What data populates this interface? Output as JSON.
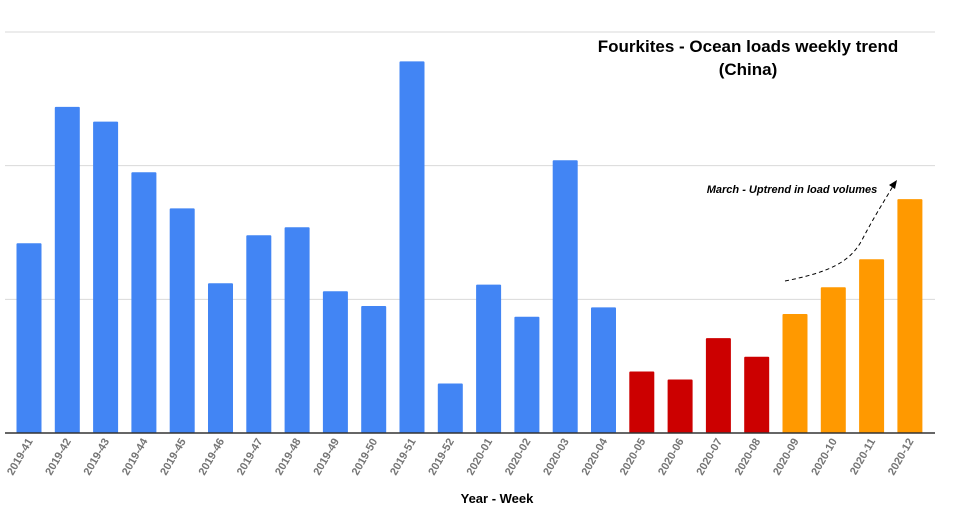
{
  "chart_data": {
    "type": "bar",
    "title": "Fourkites - Ocean loads weekly trend",
    "subtitle": "(China)",
    "xlabel": "Year - Week",
    "ylabel": "",
    "ylim": [
      0,
      3000
    ],
    "grid": true,
    "y_tick_labels_visible": false,
    "categories": [
      "2019-41",
      "2019-42",
      "2019-43",
      "2019-44",
      "2019-45",
      "2019-46",
      "2019-47",
      "2019-48",
      "2019-49",
      "2019-50",
      "2019-51",
      "2019-52",
      "2020-01",
      "2020-02",
      "2020-03",
      "2020-04",
      "2020-05",
      "2020-06",
      "2020-07",
      "2020-08",
      "2020-09",
      "2020-10",
      "2020-11",
      "2020-12"
    ],
    "values": [
      1420,
      2440,
      2330,
      1950,
      1680,
      1120,
      1480,
      1540,
      1060,
      950,
      2780,
      370,
      1110,
      870,
      2040,
      940,
      460,
      400,
      710,
      570,
      890,
      1090,
      1300,
      1750
    ],
    "bar_colors": [
      "#4285f4",
      "#4285f4",
      "#4285f4",
      "#4285f4",
      "#4285f4",
      "#4285f4",
      "#4285f4",
      "#4285f4",
      "#4285f4",
      "#4285f4",
      "#4285f4",
      "#4285f4",
      "#4285f4",
      "#4285f4",
      "#4285f4",
      "#4285f4",
      "#cc0000",
      "#cc0000",
      "#cc0000",
      "#cc0000",
      "#ff9900",
      "#ff9900",
      "#ff9900",
      "#ff9900"
    ],
    "annotation": {
      "text": "March - Uptrend in load volumes",
      "arrow_style": "dashed"
    }
  }
}
